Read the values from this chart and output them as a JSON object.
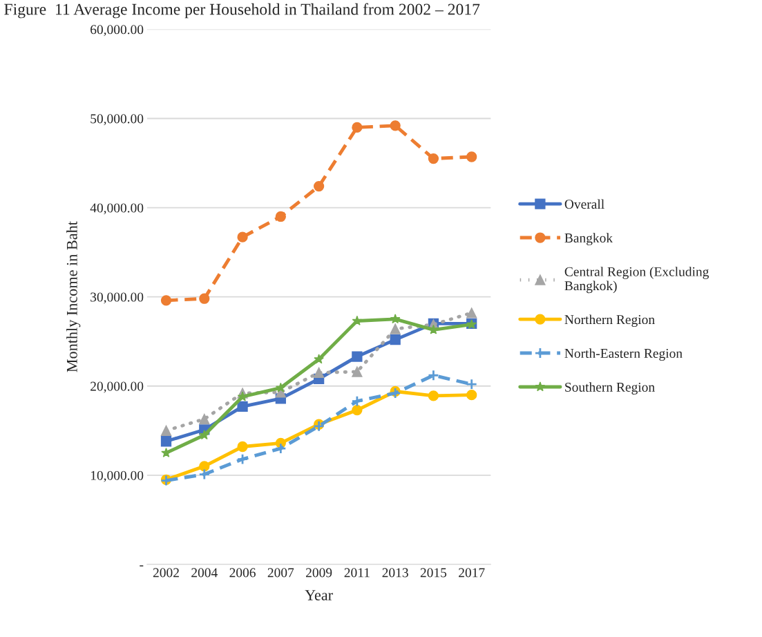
{
  "chart_data": {
    "type": "line",
    "title": "Figure  11 Average Income per Household in Thailand from 2002 – 2017",
    "xlabel": "Year",
    "ylabel": "Monthly Income in Baht",
    "categories": [
      "2002",
      "2004",
      "2006",
      "2007",
      "2009",
      "2011",
      "2013",
      "2015",
      "2017"
    ],
    "ylim": [
      0,
      60000
    ],
    "yticks": [
      {
        "value": 0,
        "label": "-"
      },
      {
        "value": 10000,
        "label": "10,000.00"
      },
      {
        "value": 20000,
        "label": "20,000.00"
      },
      {
        "value": 30000,
        "label": "30,000.00"
      },
      {
        "value": 40000,
        "label": "40,000.00"
      },
      {
        "value": 50000,
        "label": "50,000.00"
      },
      {
        "value": 60000,
        "label": "60,000.00"
      }
    ],
    "grid": "y",
    "legend": "right",
    "series": [
      {
        "name": "Overall",
        "color": "#4472c4",
        "marker": "square",
        "line_style": "solid",
        "values": [
          13800,
          15100,
          17700,
          18600,
          20800,
          23300,
          25200,
          27000,
          27000
        ]
      },
      {
        "name": "Bangkok",
        "color": "#ed7d31",
        "marker": "circle",
        "line_style": "dashed",
        "values": [
          29600,
          29800,
          36700,
          39000,
          42400,
          49000,
          49200,
          45500,
          45700
        ]
      },
      {
        "name": "Central Region (Excluding Bangkok)",
        "color": "#a5a5a5",
        "marker": "triangle",
        "line_style": "dotted",
        "values": [
          15000,
          16300,
          19200,
          19300,
          21500,
          21600,
          26400,
          26900,
          28200
        ]
      },
      {
        "name": "Northern Region",
        "color": "#ffc000",
        "marker": "circle",
        "line_style": "solid",
        "values": [
          9500,
          11000,
          13200,
          13600,
          15700,
          17300,
          19400,
          18900,
          19000
        ]
      },
      {
        "name": "North-Eastern Region",
        "color": "#5b9bd5",
        "marker": "cross",
        "line_style": "dashed",
        "values": [
          9400,
          10100,
          11800,
          13000,
          15500,
          18300,
          19200,
          21200,
          20200
        ]
      },
      {
        "name": "Southern Region",
        "color": "#70ad47",
        "marker": "star",
        "line_style": "solid",
        "values": [
          12500,
          14500,
          18800,
          19800,
          23000,
          27300,
          27500,
          26300,
          26900
        ]
      }
    ]
  }
}
